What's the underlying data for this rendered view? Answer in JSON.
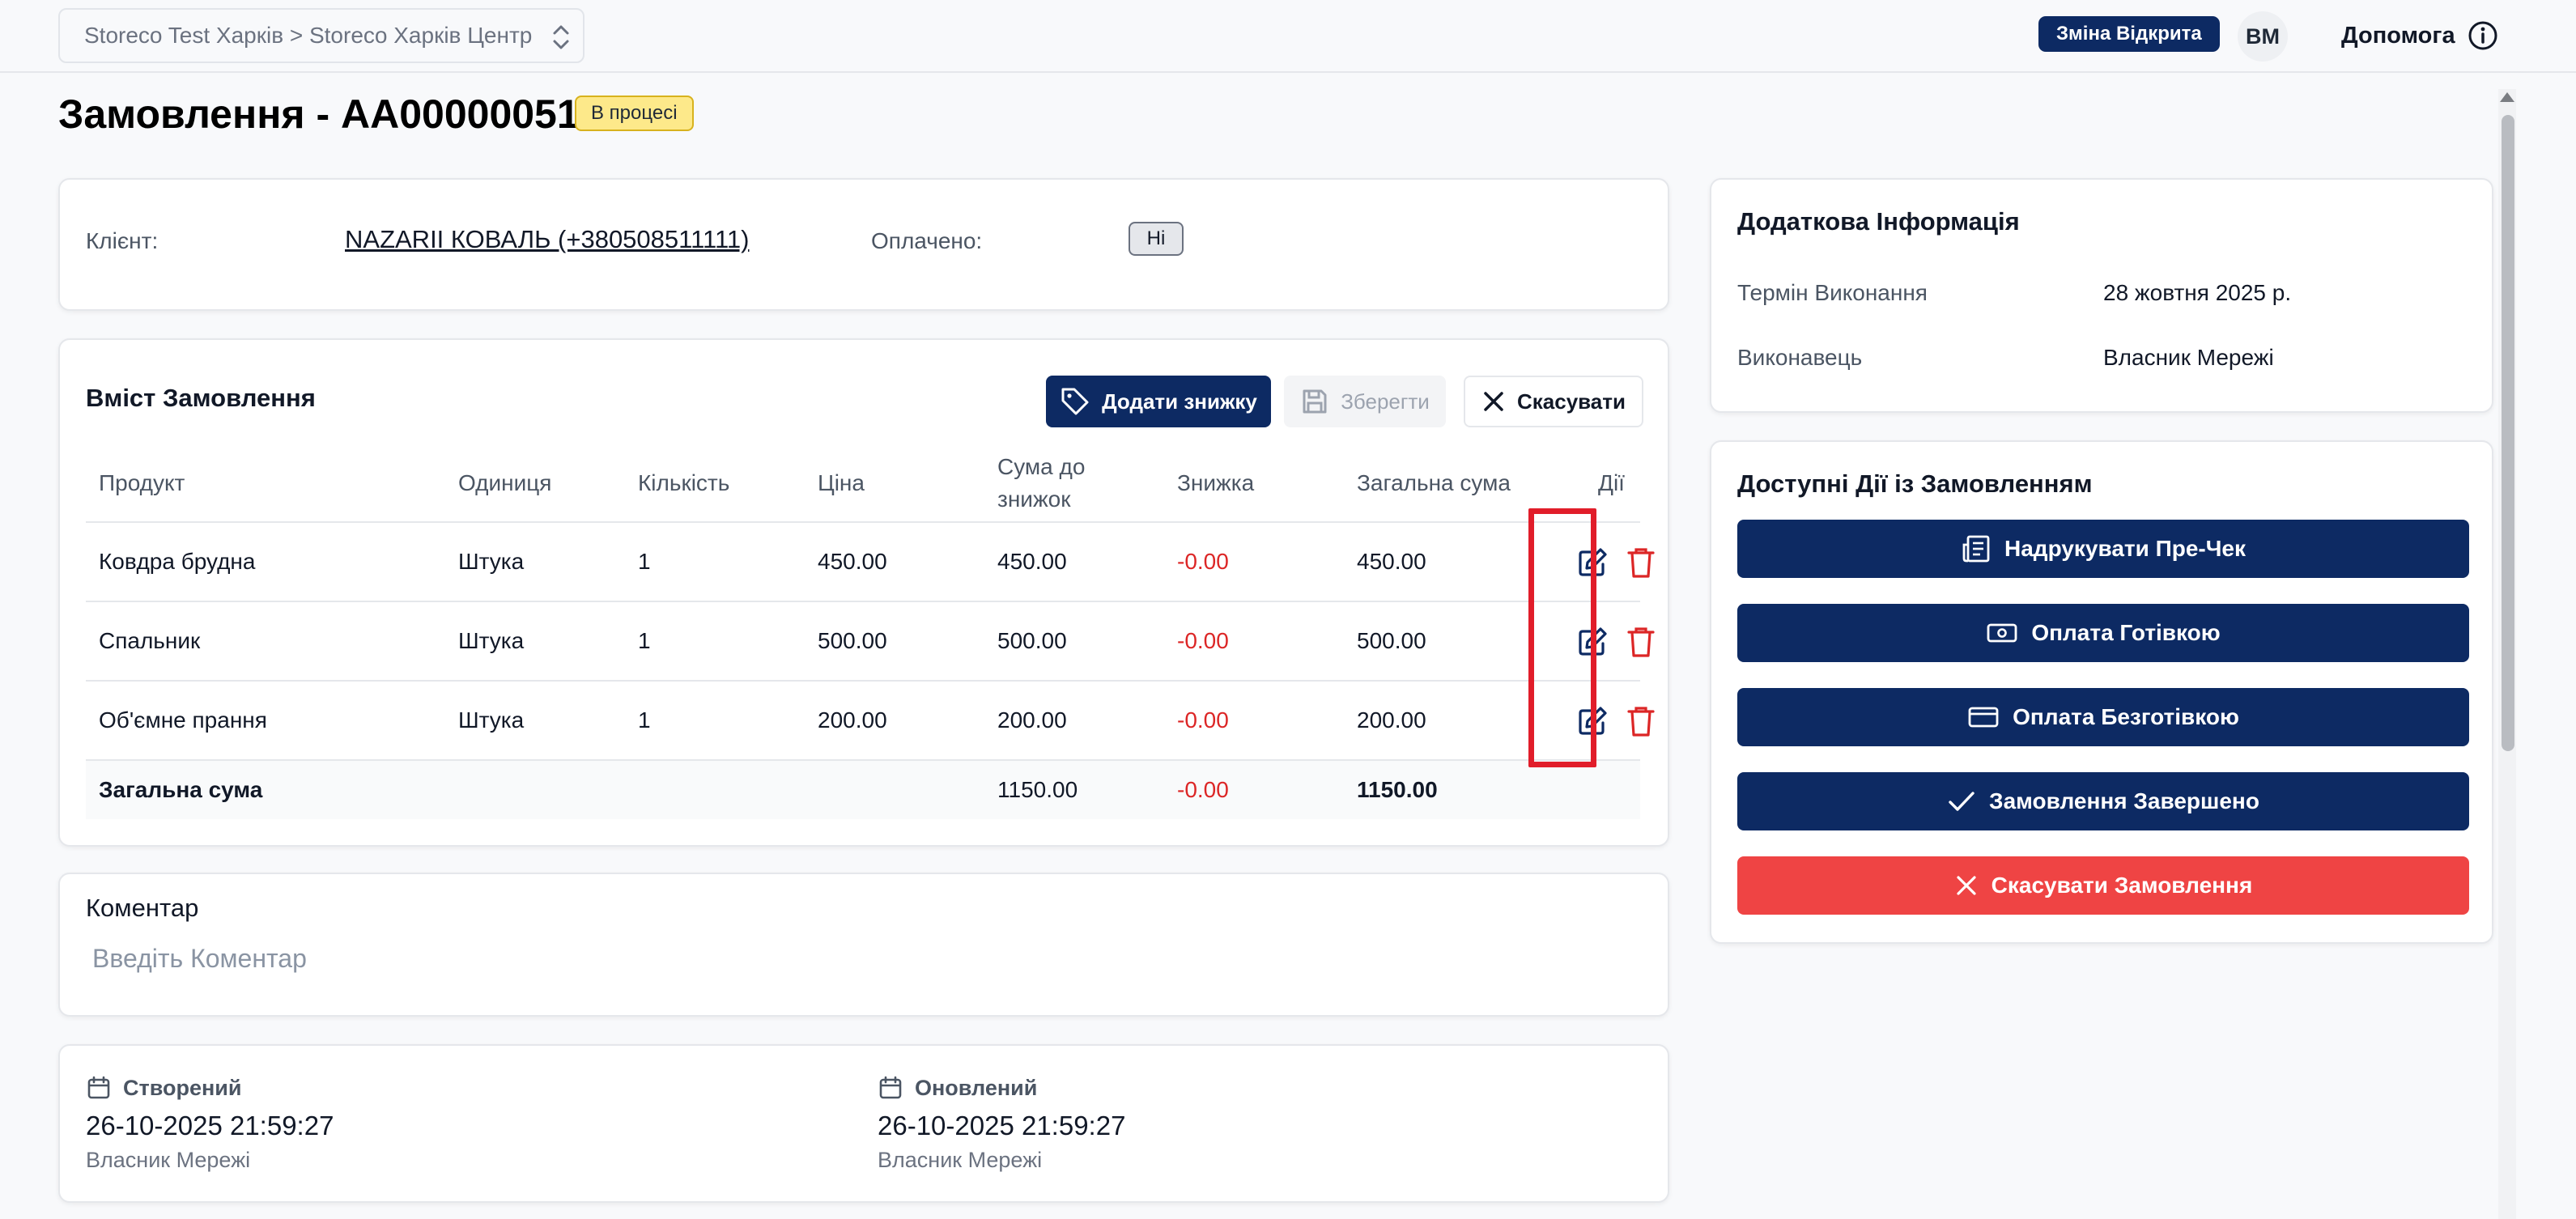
{
  "header": {
    "store_path": "Storeco Test Харків > Storeco Харків Центр",
    "shift_status": "Зміна Відкрита",
    "user_initials": "ВМ",
    "help_label": "Допомога"
  },
  "order": {
    "title": "Замовлення - АА00000051",
    "status": "В процесі"
  },
  "client_card": {
    "client_label": "Клієнт:",
    "client_value": "NAZARII КОВАЛЬ (+380508511111)",
    "paid_label": "Оплачено:",
    "paid_value": "Ні"
  },
  "contents": {
    "title": "Вміст Замовлення",
    "add_discount": "Додати знижку",
    "save": "Зберегти",
    "cancel": "Скасувати",
    "columns": [
      "Продукт",
      "Одиниця",
      "Кількість",
      "Ціна",
      "Сума до знижок",
      "Знижка",
      "Загальна сума",
      "Дії"
    ],
    "rows": [
      {
        "product": "Ковдра брудна",
        "unit": "Штука",
        "qty": "1",
        "price": "450.00",
        "subtotal": "450.00",
        "discount": "-0.00",
        "total": "450.00"
      },
      {
        "product": "Спальник",
        "unit": "Штука",
        "qty": "1",
        "price": "500.00",
        "subtotal": "500.00",
        "discount": "-0.00",
        "total": "500.00"
      },
      {
        "product": "Об'ємне прання",
        "unit": "Штука",
        "qty": "1",
        "price": "200.00",
        "subtotal": "200.00",
        "discount": "-0.00",
        "total": "200.00"
      }
    ],
    "totals": {
      "label": "Загальна сума",
      "subtotal": "1150.00",
      "discount": "-0.00",
      "total": "1150.00"
    }
  },
  "comment": {
    "title": "Коментар",
    "placeholder": "Введіть Коментар"
  },
  "dates": {
    "created_label": "Створений",
    "created_value": "26-10-2025 21:59:27",
    "created_by": "Власник Мережі",
    "updated_label": "Оновлений",
    "updated_value": "26-10-2025 21:59:27",
    "updated_by": "Власник Мережі"
  },
  "extra_info": {
    "title": "Додаткова Інформація",
    "due_label": "Термін Виконання",
    "due_value": "28 жовтня 2025 р.",
    "executor_label": "Виконавець",
    "executor_value": "Власник Мережі"
  },
  "actions": {
    "title": "Доступні Дії із Замовленням",
    "print": "Надрукувати Пре-Чек",
    "cash": "Оплата Готівкою",
    "card": "Оплата Безготівкою",
    "complete": "Замовлення Завершено",
    "cancel_order": "Скасувати Замовлення"
  },
  "colors": {
    "primary": "#0d2a63",
    "danger": "#ef4444",
    "status_badge": "#fde98a",
    "highlight": "#e11d2a"
  }
}
